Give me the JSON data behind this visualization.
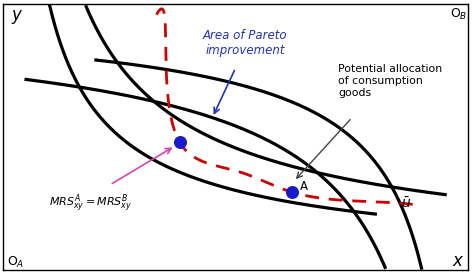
{
  "bg_color": "#ffffff",
  "curve_color": "#000000",
  "dashed_color": "#cc0000",
  "point_color": "#1a1acc",
  "OA_label": "O$_{A}$",
  "OB_label": "O$_{B}$",
  "x_label": "x",
  "y_label": "y",
  "pareto_text": "Area of Pareto\nimprovement",
  "potential_text": "Potential allocation\nof consumption\ngoods",
  "mrs_text": "$MRS^{A}_{xy} = MRS^{B}_{xy}$",
  "u_bar_text": "$\\bar{u}$",
  "point_A_label": "A",
  "curve_lw": 2.3,
  "dashed_lw": 2.0,
  "point_size": 70,
  "xlim": [
    0,
    10
  ],
  "ylim": [
    0,
    7.5
  ],
  "p1x": 3.8,
  "p1y": 3.6,
  "p2x": 6.2,
  "p2y": 2.2
}
